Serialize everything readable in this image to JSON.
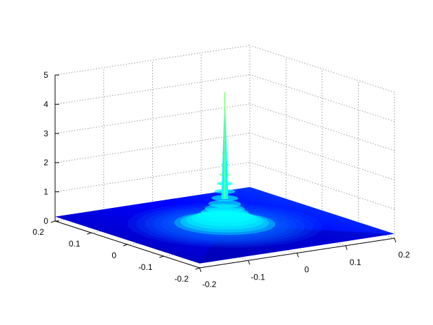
{
  "chart_data": {
    "type": "surface",
    "title": "",
    "xlabel": "",
    "ylabel": "",
    "zlabel": "",
    "xlim": [
      -0.2,
      0.2
    ],
    "ylim": [
      -0.2,
      0.2
    ],
    "zlim": [
      0,
      5
    ],
    "grid": true,
    "x_ticks": [
      "-0.2",
      "-0.1",
      "0",
      "0.1",
      "0.2"
    ],
    "y_ticks": [
      "-0.2",
      "-0.1",
      "0",
      "0.1",
      "0.2"
    ],
    "z_ticks": [
      "0",
      "1",
      "2",
      "3",
      "4",
      "5"
    ],
    "peak": {
      "x": 0,
      "y": 0,
      "z": 4.7
    },
    "surface_level": 0.15,
    "colormap": [
      "#0000a0",
      "#0000ff",
      "#0060ff",
      "#00ffff",
      "#80ff80"
    ]
  }
}
